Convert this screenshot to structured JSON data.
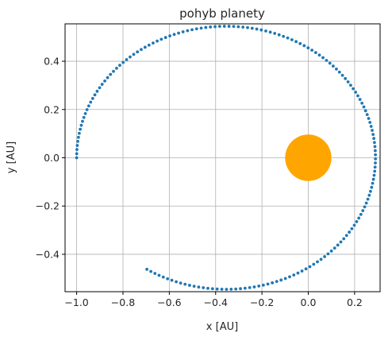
{
  "chart_data": {
    "type": "scatter",
    "title": "pohyb planety",
    "xlabel": "x [AU]",
    "ylabel": "y [AU]",
    "xlim": [
      -1.05,
      0.31
    ],
    "ylim": [
      -0.555,
      0.555
    ],
    "grid": true,
    "xticks": [
      -1.0,
      -0.8,
      -0.6,
      -0.4,
      -0.2,
      0.0,
      0.2
    ],
    "xtick_labels": [
      "−1.0",
      "−0.8",
      "−0.6",
      "−0.4",
      "−0.2",
      "0.0",
      "0.2"
    ],
    "yticks": [
      -0.4,
      -0.2,
      0.0,
      0.2,
      0.4
    ],
    "ytick_labels": [
      "−0.4",
      "−0.2",
      "0.0",
      "0.2",
      "0.4"
    ],
    "orbit": {
      "color": "#1f77b4",
      "center": [
        -0.355,
        0.0
      ],
      "radius_x": 0.645,
      "radius_y": 0.545,
      "start_angle_deg": 180,
      "end_angle_deg": 482,
      "point_count": 170
    },
    "sun": {
      "color": "#ffa500",
      "x": 0.0,
      "y": 0.0,
      "radius": 0.1
    }
  }
}
